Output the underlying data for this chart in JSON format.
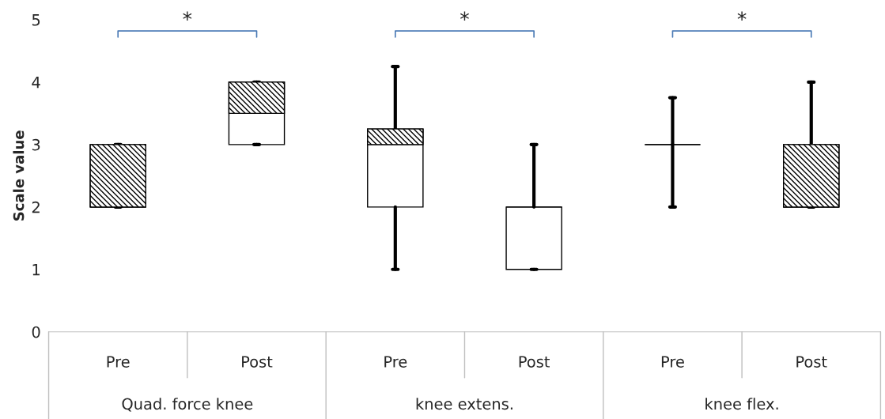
{
  "chart_data": {
    "type": "box",
    "ylabel": "Scale value",
    "ylim": [
      0,
      5
    ],
    "yticks": [
      0,
      1,
      2,
      3,
      4,
      5
    ],
    "grid": false,
    "categories": [
      "Pre",
      "Post",
      "Pre",
      "Post",
      "Pre",
      "Post"
    ],
    "boxes": [
      {
        "low": 2,
        "q1": 2,
        "median": 2,
        "q3": 3,
        "high": 3
      },
      {
        "low": 3,
        "q1": 3,
        "median": 3.5,
        "q3": 4,
        "high": 4
      },
      {
        "low": 1,
        "q1": 2,
        "median": 3,
        "q3": 3.25,
        "high": 4.25
      },
      {
        "low": 1,
        "q1": 1,
        "median": 2,
        "q3": 2,
        "high": 3
      },
      {
        "low": 2,
        "q1": 3,
        "median": 3,
        "q3": 3,
        "high": 3.75
      },
      {
        "low": 2,
        "q1": 2,
        "median": 2,
        "q3": 3,
        "high": 4
      }
    ],
    "annotations": [
      "*",
      "*",
      "*",
      "Quad. force knee",
      "knee extens.",
      "knee flex."
    ]
  }
}
